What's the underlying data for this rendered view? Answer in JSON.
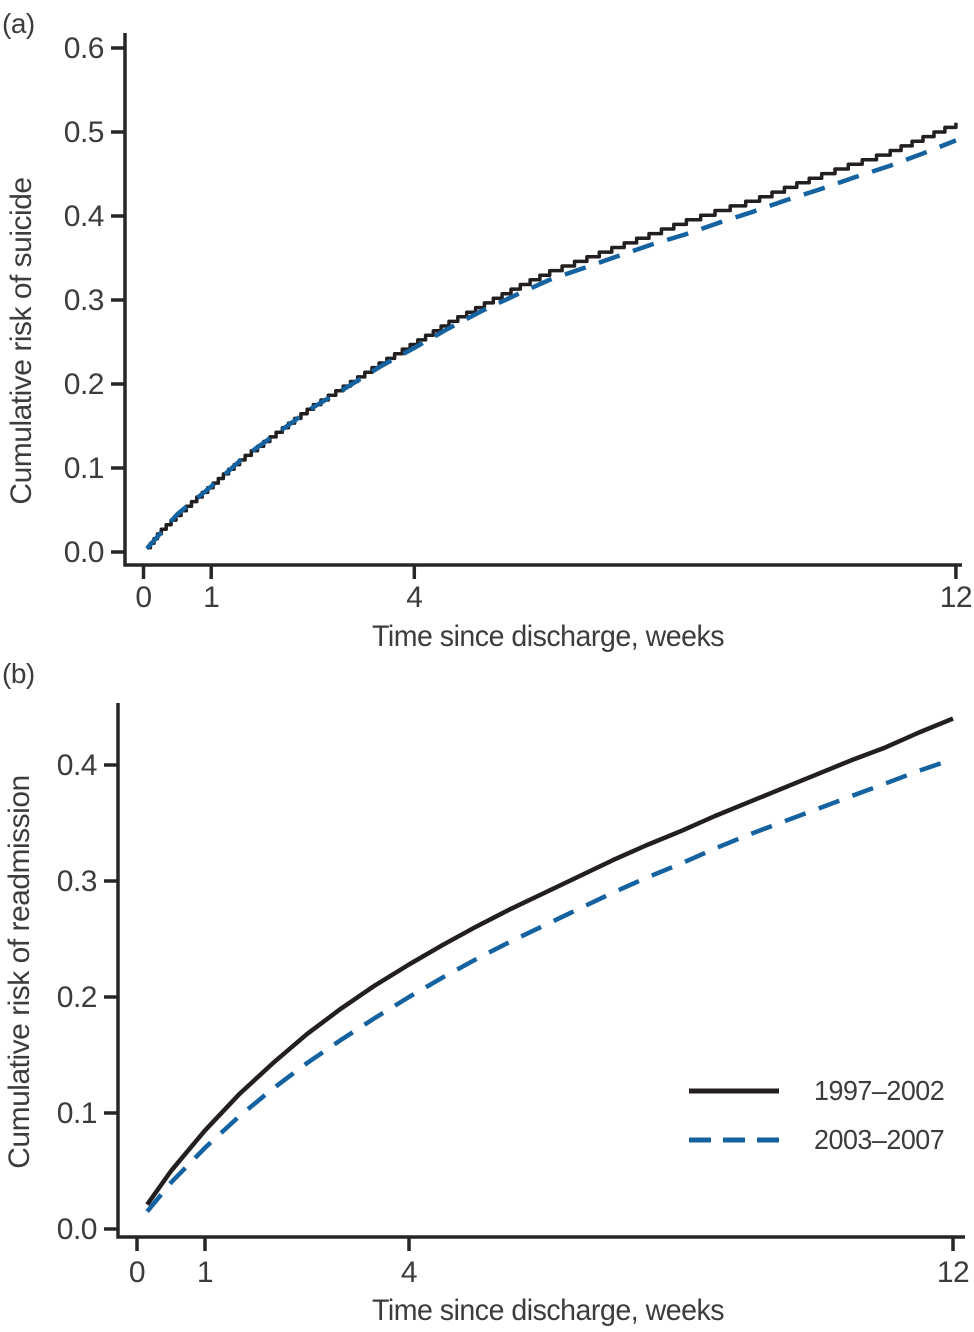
{
  "page": {
    "background": "#ffffff"
  },
  "colors": {
    "series_black": "#231f20",
    "series_blue": "#1562a0",
    "axis": "#262626",
    "text": "#3c3c3a"
  },
  "legend": {
    "position": "bottom-right-of-panel-b",
    "entries": [
      {
        "label": "1997–2002",
        "style": "solid",
        "color": "#231f20"
      },
      {
        "label": "2003–2007",
        "style": "dashed",
        "color": "#1562a0"
      }
    ]
  },
  "panels": [
    {
      "panel_label": "(a)",
      "xlabel": "Time since discharge, weeks",
      "ylabel": "Cumulative risk of suicide",
      "chart_data": {
        "type": "line",
        "xlabel": "Time since discharge, weeks",
        "ylabel": "Cumulative risk of suicide",
        "xlim": [
          0,
          12.3
        ],
        "ylim": [
          0.0,
          0.62
        ],
        "x_ticks": [
          0,
          1,
          4,
          12
        ],
        "x_tick_labels": [
          "0",
          "1",
          "4",
          "12"
        ],
        "y_ticks": [
          0.0,
          0.1,
          0.2,
          0.3,
          0.4,
          0.5,
          0.6
        ],
        "y_tick_labels": [
          "0.0",
          "0.1",
          "0.2",
          "0.3",
          "0.4",
          "0.5",
          "0.6"
        ],
        "grid": false,
        "legend_position": "none",
        "series": [
          {
            "name": "1997–2002",
            "style": "solid-step",
            "color": "#231f20",
            "points": [
              [
                0.05,
                0.005
              ],
              [
                0.25,
                0.026
              ],
              [
                0.5,
                0.045
              ],
              [
                0.75,
                0.063
              ],
              [
                1,
                0.08
              ],
              [
                1.25,
                0.098
              ],
              [
                1.5,
                0.115
              ],
              [
                1.75,
                0.13
              ],
              [
                2,
                0.145
              ],
              [
                2.5,
                0.175
              ],
              [
                3,
                0.2
              ],
              [
                3.5,
                0.226
              ],
              [
                4,
                0.25
              ],
              [
                4.5,
                0.274
              ],
              [
                5,
                0.295
              ],
              [
                5.5,
                0.316
              ],
              [
                6,
                0.335
              ],
              [
                6.5,
                0.35
              ],
              [
                7,
                0.365
              ],
              [
                7.5,
                0.38
              ],
              [
                8,
                0.395
              ],
              [
                8.5,
                0.408
              ],
              [
                9,
                0.42
              ],
              [
                9.5,
                0.435
              ],
              [
                10,
                0.45
              ],
              [
                10.5,
                0.464
              ],
              [
                11,
                0.477
              ],
              [
                11.5,
                0.494
              ],
              [
                12,
                0.511
              ]
            ]
          },
          {
            "name": "2003–2007",
            "style": "dashed",
            "color": "#1562a0",
            "points": [
              [
                0.05,
                0.004
              ],
              [
                0.5,
                0.045
              ],
              [
                1,
                0.078
              ],
              [
                1.5,
                0.114
              ],
              [
                2,
                0.143
              ],
              [
                2.5,
                0.172
              ],
              [
                3,
                0.196
              ],
              [
                3.5,
                0.221
              ],
              [
                4,
                0.243
              ],
              [
                4.5,
                0.266
              ],
              [
                5,
                0.287
              ],
              [
                5.5,
                0.306
              ],
              [
                6,
                0.324
              ],
              [
                6.5,
                0.338
              ],
              [
                7,
                0.352
              ],
              [
                7.5,
                0.366
              ],
              [
                8,
                0.378
              ],
              [
                8.5,
                0.392
              ],
              [
                9,
                0.405
              ],
              [
                9.5,
                0.419
              ],
              [
                10,
                0.432
              ],
              [
                10.5,
                0.446
              ],
              [
                11,
                0.459
              ],
              [
                11.5,
                0.474
              ],
              [
                12,
                0.49
              ]
            ]
          }
        ]
      }
    },
    {
      "panel_label": "(b)",
      "xlabel": "Time since discharge, weeks",
      "ylabel": "Cumulative risk of readmission",
      "chart_data": {
        "type": "line",
        "xlabel": "Time since discharge, weeks",
        "ylabel": "Cumulative risk of readmission",
        "xlim": [
          0,
          12.3
        ],
        "ylim": [
          0.0,
          0.46
        ],
        "x_ticks": [
          0,
          1,
          4,
          12
        ],
        "x_tick_labels": [
          "0",
          "1",
          "4",
          "12"
        ],
        "y_ticks": [
          0.0,
          0.1,
          0.2,
          0.3,
          0.4
        ],
        "y_tick_labels": [
          "0.0",
          "0.1",
          "0.2",
          "0.3",
          "0.4"
        ],
        "grid": false,
        "legend_position": "lower-right",
        "series": [
          {
            "name": "1997–2002",
            "style": "solid",
            "color": "#231f20",
            "points": [
              [
                0.15,
                0.021
              ],
              [
                0.5,
                0.05
              ],
              [
                1,
                0.085
              ],
              [
                1.5,
                0.116
              ],
              [
                2,
                0.143
              ],
              [
                2.5,
                0.168
              ],
              [
                3,
                0.19
              ],
              [
                3.5,
                0.21
              ],
              [
                4,
                0.228
              ],
              [
                4.5,
                0.245
              ],
              [
                5,
                0.261
              ],
              [
                5.5,
                0.276
              ],
              [
                6,
                0.29
              ],
              [
                6.5,
                0.304
              ],
              [
                7,
                0.318
              ],
              [
                7.5,
                0.331
              ],
              [
                8,
                0.343
              ],
              [
                8.5,
                0.356
              ],
              [
                9,
                0.368
              ],
              [
                9.5,
                0.38
              ],
              [
                10,
                0.392
              ],
              [
                10.5,
                0.404
              ],
              [
                11,
                0.415
              ],
              [
                11.5,
                0.428
              ],
              [
                12,
                0.44
              ]
            ]
          },
          {
            "name": "2003–2007",
            "style": "dashed",
            "color": "#1562a0",
            "points": [
              [
                0.15,
                0.015
              ],
              [
                0.5,
                0.04
              ],
              [
                1,
                0.07
              ],
              [
                1.5,
                0.097
              ],
              [
                2,
                0.121
              ],
              [
                2.5,
                0.143
              ],
              [
                3,
                0.163
              ],
              [
                3.5,
                0.182
              ],
              [
                4,
                0.2
              ],
              [
                4.5,
                0.217
              ],
              [
                5,
                0.233
              ],
              [
                5.5,
                0.248
              ],
              [
                6,
                0.262
              ],
              [
                6.5,
                0.276
              ],
              [
                7,
                0.29
              ],
              [
                7.5,
                0.303
              ],
              [
                8,
                0.315
              ],
              [
                8.5,
                0.328
              ],
              [
                9,
                0.34
              ],
              [
                9.5,
                0.351
              ],
              [
                10,
                0.362
              ],
              [
                10.5,
                0.373
              ],
              [
                11,
                0.384
              ],
              [
                11.5,
                0.395
              ],
              [
                12,
                0.405
              ]
            ]
          }
        ]
      }
    }
  ]
}
